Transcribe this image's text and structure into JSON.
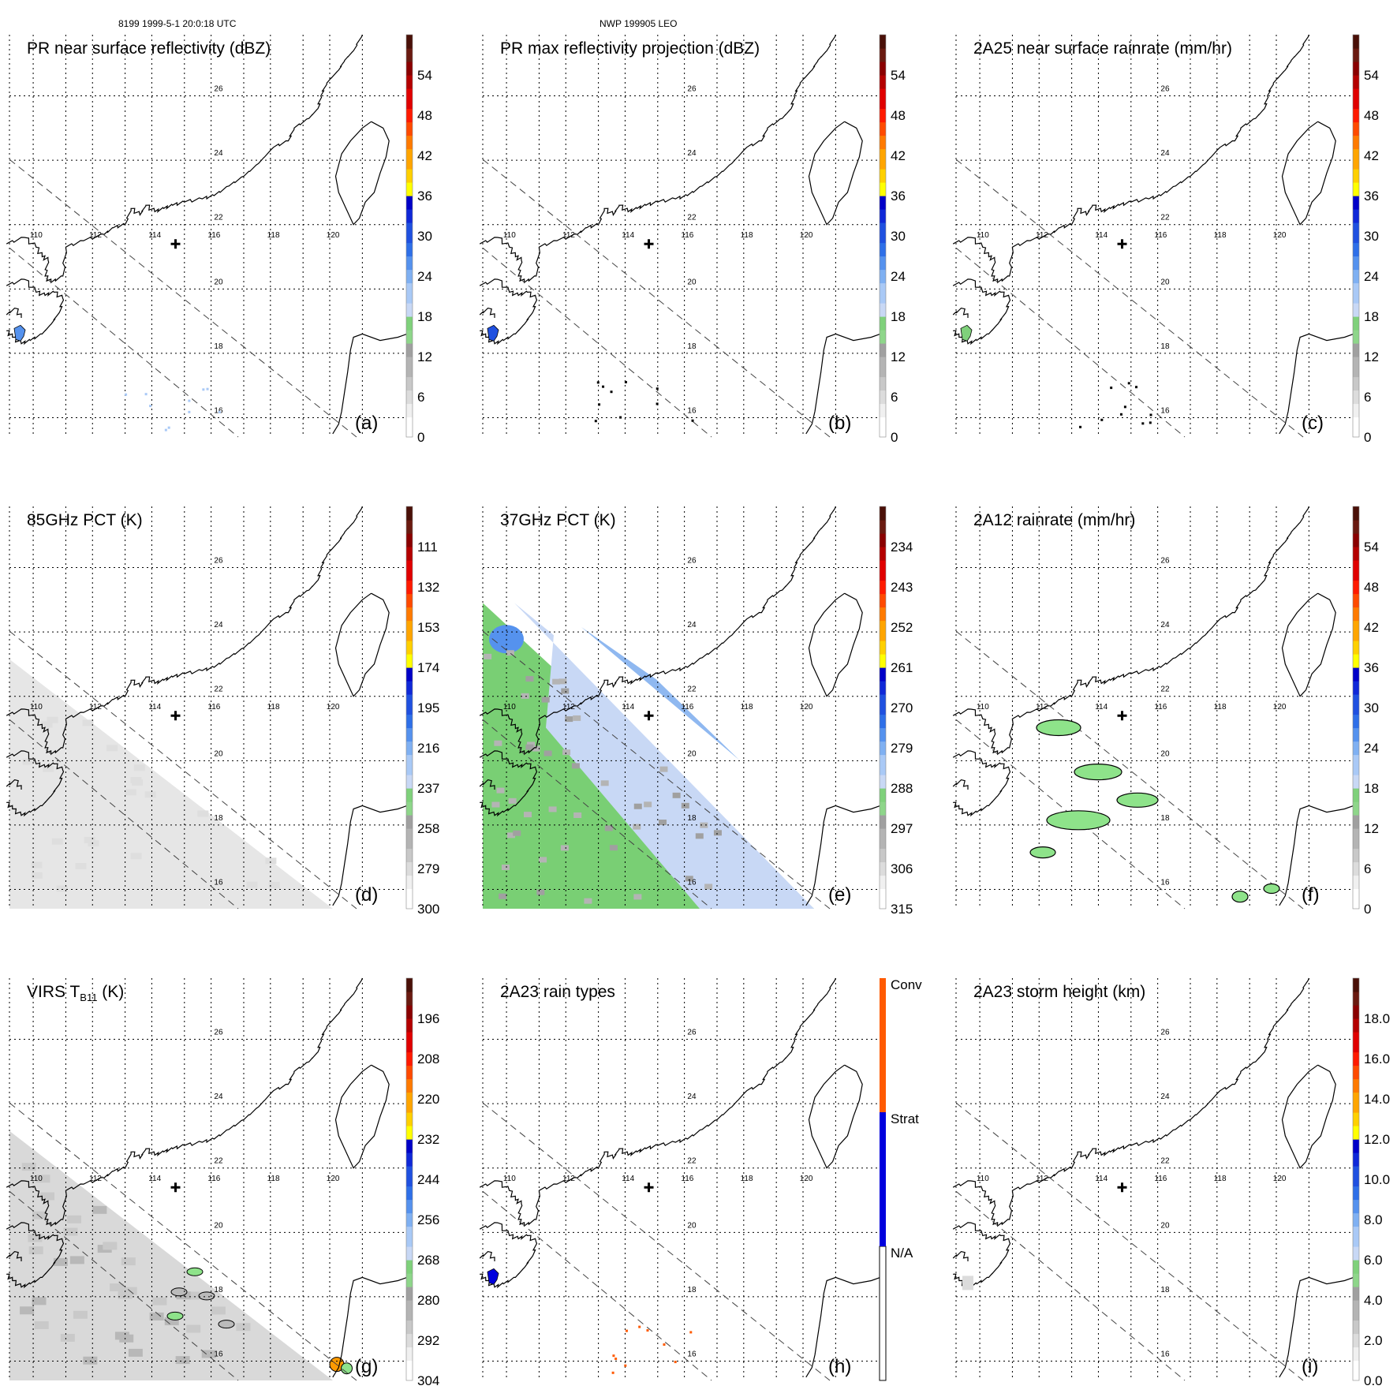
{
  "header": {
    "left": "8199 1999-5-1 20:0:18 UTC",
    "center": "NWP 199905 LEO"
  },
  "colors": {
    "scale": [
      "#ffffff",
      "#f0f0f0",
      "#dcdcdc",
      "#c8c8c8",
      "#b4b4b4",
      "#a0a0a0",
      "#8ed68a",
      "#7fd17b",
      "#c8d8f5",
      "#a9c9f6",
      "#7fb0f2",
      "#5592ee",
      "#2e6fe8",
      "#1f50e0",
      "#0f28d8",
      "#0000c8",
      "#ffff00",
      "#ffd000",
      "#ffa500",
      "#ff7a00",
      "#ff4a00",
      "#ff1a00",
      "#e00000",
      "#b40000",
      "#8a0000",
      "#6a1a10",
      "#4a1008"
    ],
    "rain_types": [
      "#ffffff",
      "#0000dd",
      "#ff5a00"
    ],
    "precip_fill": "#8ee38a",
    "ice_blue": "#8fb8f0",
    "swath_green": "#79cf74",
    "swath_gray": "#d8d8d8"
  },
  "chart_data": [
    {
      "type": "heatmap",
      "panel": "a",
      "title": "PR near surface reflectivity (dBZ)",
      "label": "(a)",
      "colorbar": {
        "ticks": [
          "0",
          "6",
          "12",
          "18",
          "24",
          "30",
          "36",
          "42",
          "48",
          "54"
        ],
        "range": [
          0,
          60
        ]
      },
      "lat_ticks": [
        "26",
        "24",
        "22",
        "20",
        "18",
        "16"
      ],
      "lon_ticks": [
        "110",
        "112",
        "114",
        "116",
        "118",
        "120"
      ]
    },
    {
      "type": "heatmap",
      "panel": "b",
      "title": "PR max reflectivity projection (dBZ)",
      "label": "(b)",
      "colorbar": {
        "ticks": [
          "0",
          "6",
          "12",
          "18",
          "24",
          "30",
          "36",
          "42",
          "48",
          "54"
        ],
        "range": [
          0,
          60
        ]
      },
      "lat_ticks": [
        "26",
        "24",
        "22",
        "20",
        "18",
        "16"
      ],
      "lon_ticks": [
        "110",
        "112",
        "114",
        "116",
        "118",
        "120"
      ]
    },
    {
      "type": "heatmap",
      "panel": "c",
      "title": "2A25 near surface rainrate (mm/hr)",
      "label": "(c)",
      "colorbar": {
        "ticks": [
          "0",
          "6",
          "12",
          "18",
          "24",
          "30",
          "36",
          "42",
          "48",
          "54"
        ],
        "range": [
          0,
          60
        ]
      },
      "lat_ticks": [
        "26",
        "24",
        "22",
        "20",
        "18",
        "16"
      ],
      "lon_ticks": [
        "110",
        "112",
        "114",
        "116",
        "118",
        "120"
      ]
    },
    {
      "type": "heatmap",
      "panel": "d",
      "title": "85GHz PCT (K)",
      "label": "(d)",
      "colorbar": {
        "ticks": [
          "300",
          "279",
          "258",
          "237",
          "216",
          "195",
          "174",
          "153",
          "132",
          "111"
        ],
        "range": [
          300,
          90
        ]
      },
      "lat_ticks": [
        "26",
        "24",
        "22",
        "20",
        "18",
        "16"
      ],
      "lon_ticks": [
        "110",
        "112",
        "114",
        "116",
        "118",
        "120"
      ]
    },
    {
      "type": "heatmap",
      "panel": "e",
      "title": "37GHz PCT (K)",
      "label": "(e)",
      "colorbar": {
        "ticks": [
          "315",
          "306",
          "297",
          "288",
          "279",
          "270",
          "261",
          "252",
          "243",
          "234"
        ],
        "range": [
          315,
          225
        ]
      },
      "lat_ticks": [
        "26",
        "24",
        "22",
        "20",
        "18",
        "16"
      ],
      "lon_ticks": [
        "110",
        "112",
        "114",
        "116",
        "118",
        "120"
      ]
    },
    {
      "type": "heatmap",
      "panel": "f",
      "title": "2A12 rainrate (mm/hr)",
      "label": "(f)",
      "colorbar": {
        "ticks": [
          "0",
          "6",
          "12",
          "18",
          "24",
          "30",
          "36",
          "42",
          "48",
          "54"
        ],
        "range": [
          0,
          60
        ]
      },
      "lat_ticks": [
        "26",
        "24",
        "22",
        "20",
        "18",
        "16"
      ],
      "lon_ticks": [
        "110",
        "112",
        "114",
        "116",
        "118",
        "120"
      ]
    },
    {
      "type": "heatmap",
      "panel": "g",
      "title": "VIRS T",
      "title_sub": "B11",
      "title_suffix": " (K)",
      "label": "(g)",
      "colorbar": {
        "ticks": [
          "304",
          "292",
          "280",
          "268",
          "256",
          "244",
          "232",
          "220",
          "208",
          "196"
        ],
        "range": [
          304,
          184
        ]
      },
      "lat_ticks": [
        "26",
        "24",
        "22",
        "20",
        "18",
        "16"
      ],
      "lon_ticks": [
        "110",
        "112",
        "114",
        "116",
        "118",
        "120"
      ]
    },
    {
      "type": "heatmap",
      "panel": "h",
      "title": "2A23 rain types",
      "label": "(h)",
      "colorbar": {
        "categories": [
          "N/A",
          "Strat",
          "Conv"
        ]
      },
      "lat_ticks": [
        "26",
        "24",
        "22",
        "20",
        "18",
        "16"
      ],
      "lon_ticks": [
        "110",
        "112",
        "114",
        "116",
        "118",
        "120"
      ]
    },
    {
      "type": "heatmap",
      "panel": "i",
      "title": "2A23 storm height (km)",
      "label": "(i)",
      "colorbar": {
        "ticks": [
          "0.0",
          "2.0",
          "4.0",
          "6.0",
          "8.0",
          "10.0",
          "12.0",
          "14.0",
          "16.0",
          "18.0"
        ],
        "range": [
          0,
          20
        ]
      },
      "lat_ticks": [
        "26",
        "24",
        "22",
        "20",
        "18",
        "16"
      ],
      "lon_ticks": [
        "110",
        "112",
        "114",
        "116",
        "118",
        "120"
      ]
    }
  ]
}
